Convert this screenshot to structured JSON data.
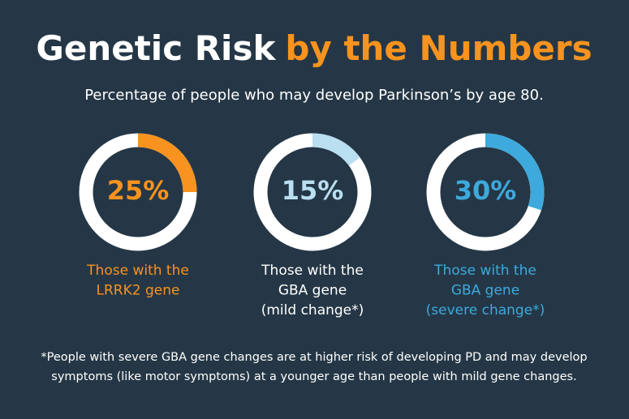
{
  "header": {
    "title_part1": "Genetic Risk",
    "title_part2": "by the Numbers",
    "subtitle": "Percentage of people who may develop Parkinson’s by age 80."
  },
  "chart_data": [
    {
      "type": "donut",
      "values": [
        25
      ],
      "value_labels": [
        "25%"
      ],
      "color": "#f7931e",
      "label_lines": [
        "Those with the",
        "LRRK2 gene"
      ]
    },
    {
      "type": "donut",
      "values": [
        15
      ],
      "value_labels": [
        "15%"
      ],
      "color": "#b9dff0",
      "label_lines": [
        "Those with the",
        "GBA gene",
        "(mild change*)"
      ]
    },
    {
      "type": "donut",
      "values": [
        30
      ],
      "value_labels": [
        "30%"
      ],
      "color": "#3ea9dc",
      "label_lines": [
        "Those with the",
        "GBA gene",
        "(severe change*)"
      ]
    }
  ],
  "footnote": [
    "*People with severe GBA gene changes are at higher risk of developing PD and may develop",
    "symptoms (like motor symptoms) at a younger age than people with mild gene changes."
  ]
}
